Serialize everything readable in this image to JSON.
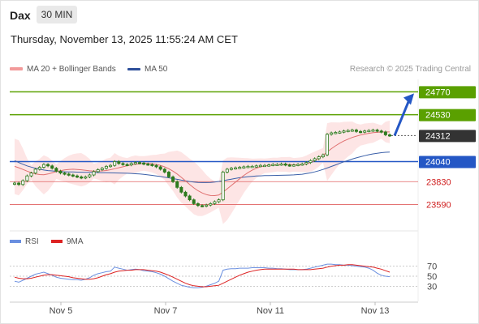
{
  "header": {
    "symbol": "Dax",
    "timeframe": "30 MIN",
    "timestamp": "Thursday, November 13, 2025 11:55:24 AM CET"
  },
  "legend": {
    "ma20": "MA 20 + Bollinger Bands",
    "ma50": "MA 50",
    "credit": "Research © 2025 Trading Central"
  },
  "rsi_legend": {
    "rsi": "RSI",
    "ma": "9MA"
  },
  "colors": {
    "resistance": "#5aa000",
    "support": "#2457c5",
    "stop": "#e06060",
    "current": "#333333",
    "candle": "#2d7a1e",
    "ma20": "#e07070",
    "ma50": "#3a5fa8",
    "band_fill": "#fde0e0",
    "rsi": "#6a8fe0",
    "rsi_ma": "#dd2222",
    "arrow": "#2457c5"
  },
  "chart_data": {
    "type": "candlestick",
    "x_labels": [
      "Nov 5",
      "Nov 7",
      "Nov 11",
      "Nov 13"
    ],
    "ylim": [
      23400,
      24900
    ],
    "levels": [
      {
        "value": 24770,
        "label": "24770",
        "kind": "resistance"
      },
      {
        "value": 24530,
        "label": "24530",
        "kind": "resistance"
      },
      {
        "value": 24312,
        "label": "24312",
        "kind": "current"
      },
      {
        "value": 24040,
        "label": "24040",
        "kind": "support"
      },
      {
        "value": 23830,
        "label": "23830",
        "kind": "stop"
      },
      {
        "value": 23590,
        "label": "23590",
        "kind": "stop"
      }
    ],
    "close": [
      23815,
      23800,
      23840,
      23890,
      23920,
      23960,
      23980,
      24010,
      23995,
      23970,
      23940,
      23920,
      23910,
      23900,
      23890,
      23880,
      23870,
      23880,
      23900,
      23935,
      23955,
      23970,
      23990,
      24000,
      24040,
      24020,
      24010,
      24005,
      24020,
      24030,
      24025,
      24015,
      24010,
      24000,
      23985,
      23960,
      23930,
      23880,
      23830,
      23770,
      23720,
      23680,
      23640,
      23600,
      23580,
      23575,
      23585,
      23600,
      23620,
      23640,
      23930,
      23960,
      23970,
      23975,
      23980,
      23985,
      23990,
      23990,
      23995,
      24000,
      24000,
      24005,
      24010,
      24010,
      24015,
      24005,
      24000,
      24005,
      24010,
      24015,
      24030,
      24050,
      24070,
      24090,
      24110,
      24325,
      24340,
      24345,
      24350,
      24360,
      24365,
      24370,
      24355,
      24350,
      24360,
      24365,
      24370,
      24360,
      24350,
      24320,
      24312
    ],
    "ma20": [
      23990,
      23975,
      23958,
      23940,
      23925,
      23912,
      23904,
      23902,
      23910,
      23922,
      23935,
      23945,
      23953,
      23958,
      23960,
      23958,
      23954,
      23948,
      23943,
      23940,
      23940,
      23942,
      23947,
      23955,
      23965,
      23975,
      23986,
      23996,
      24005,
      24012,
      24017,
      24020,
      24020,
      24017,
      24010,
      24000,
      23985,
      23965,
      23940,
      23910,
      23875,
      23838,
      23800,
      23765,
      23735,
      23712,
      23695,
      23685,
      23684,
      23690,
      23720,
      23755,
      23790,
      23825,
      23860,
      23895,
      23925,
      23950,
      23970,
      23985,
      23995,
      24000,
      24005,
      24008,
      24010,
      24010,
      24008,
      24006,
      24006,
      24008,
      24015,
      24030,
      24050,
      24075,
      24105,
      24140,
      24175,
      24205,
      24232,
      24255,
      24275,
      24292,
      24306,
      24318,
      24328,
      24336,
      24342,
      24346,
      24349,
      24350,
      24350
    ],
    "ma50": [
      24050,
      24030,
      24012,
      23995,
      23982,
      23970,
      23960,
      23952,
      23946,
      23942,
      23938,
      23935,
      23933,
      23932,
      23931,
      23930,
      23929,
      23928,
      23927,
      23926,
      23925,
      23924,
      23923,
      23922,
      23921,
      23920,
      23919,
      23918,
      23916,
      23913,
      23910,
      23906,
      23901,
      23896,
      23890,
      23884,
      23877,
      23870,
      23862,
      23854,
      23846,
      23838,
      23831,
      23826,
      23822,
      23820,
      23820,
      23822,
      23826,
      23832,
      23840,
      23848,
      23856,
      23864,
      23871,
      23877,
      23882,
      23886,
      23889,
      23891,
      23893,
      23894,
      23895,
      23896,
      23897,
      23898,
      23899,
      23901,
      23904,
      23908,
      23914,
      23922,
      23932,
      23944,
      23958,
      23973,
      23989,
      24005,
      24021,
      24037,
      24052,
      24066,
      24079,
      24091,
      24102,
      24112,
      24120,
      24127,
      24133,
      24137,
      24140
    ],
    "rsi": [
      40,
      38,
      42,
      46,
      50,
      54,
      56,
      58,
      55,
      52,
      48,
      46,
      45,
      44,
      43,
      43,
      42,
      44,
      47,
      52,
      55,
      57,
      59,
      60,
      68,
      66,
      64,
      62,
      63,
      64,
      63,
      61,
      60,
      59,
      57,
      54,
      50,
      45,
      40,
      36,
      32,
      30,
      28,
      27,
      27,
      28,
      30,
      33,
      36,
      40,
      62,
      64,
      65,
      65,
      66,
      66,
      66,
      67,
      67,
      67,
      67,
      66,
      66,
      65,
      65,
      64,
      63,
      63,
      63,
      63,
      64,
      66,
      68,
      70,
      72,
      74,
      74,
      73,
      73,
      72,
      72,
      71,
      70,
      69,
      68,
      66,
      62,
      56,
      52,
      50,
      49
    ],
    "rsi_ma": [
      48,
      46,
      45,
      45,
      46,
      48,
      50,
      52,
      53,
      53,
      52,
      51,
      50,
      49,
      47,
      46,
      45,
      44,
      44,
      45,
      47,
      50,
      53,
      55,
      58,
      60,
      61,
      62,
      62,
      63,
      63,
      63,
      62,
      61,
      60,
      58,
      55,
      52,
      48,
      44,
      40,
      36,
      33,
      31,
      30,
      29,
      29,
      30,
      31,
      32,
      36,
      40,
      44,
      48,
      52,
      55,
      58,
      60,
      62,
      63,
      64,
      64,
      64,
      64,
      64,
      64,
      64,
      64,
      63,
      63,
      63,
      63,
      64,
      65,
      66,
      68,
      70,
      71,
      72,
      72,
      73,
      73,
      72,
      71,
      70,
      69,
      68,
      66,
      64,
      61,
      58
    ],
    "rsi_levels": [
      70,
      50,
      30
    ],
    "rsi_ylim": [
      0,
      100
    ],
    "forecast_target": 24770
  }
}
